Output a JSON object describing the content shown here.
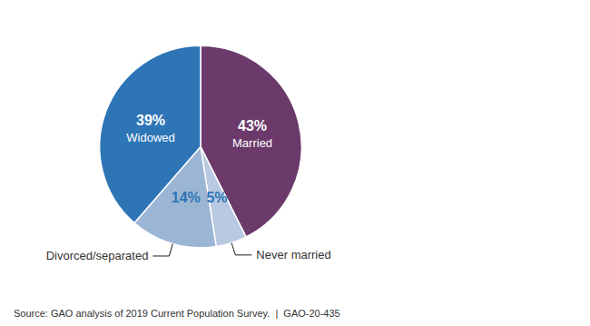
{
  "chart_data": {
    "type": "pie",
    "categories": [
      "Married",
      "Never married",
      "Divorced/separated",
      "Widowed"
    ],
    "values": [
      43,
      5,
      14,
      39
    ],
    "value_labels": [
      "43%",
      "5%",
      "14%",
      "39%"
    ],
    "colors": [
      "#6b3a6b",
      "#b8c9e1",
      "#9bb5d4",
      "#2e75b6"
    ],
    "data_labels": true,
    "annotations": [
      "Source: GAO analysis of 2019 Current Population Survey.  |  GAO-20-435"
    ]
  }
}
